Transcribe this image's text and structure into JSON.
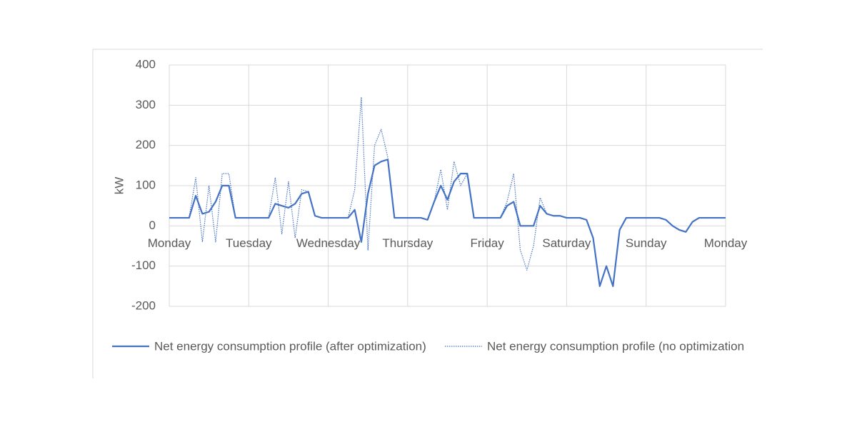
{
  "chart_data": {
    "type": "line",
    "y_label": "kW",
    "x": [
      0,
      2,
      4,
      6,
      8,
      10,
      12,
      14,
      16,
      18,
      20,
      22,
      24,
      26,
      28,
      30,
      32,
      34,
      36,
      38,
      40,
      42,
      44,
      46,
      48,
      50,
      52,
      54,
      56,
      58,
      60,
      62,
      64,
      66,
      68,
      70,
      72,
      74,
      76,
      78,
      80,
      82,
      84,
      86,
      88,
      90,
      92,
      94,
      96,
      98,
      100,
      102,
      104,
      106,
      108,
      110,
      112,
      114,
      116,
      118,
      120,
      122,
      124,
      126,
      128,
      130,
      132,
      134,
      136,
      138,
      140,
      142,
      144,
      146,
      148,
      150,
      152,
      154,
      156,
      158,
      160,
      162,
      164,
      166,
      168
    ],
    "series": [
      {
        "name": "Net energy consumption profile (after optimization)",
        "color": "#4472c4",
        "dash": "solid",
        "values": [
          20,
          20,
          20,
          20,
          75,
          30,
          35,
          60,
          100,
          100,
          20,
          20,
          20,
          20,
          20,
          20,
          55,
          50,
          45,
          55,
          80,
          85,
          25,
          20,
          20,
          20,
          20,
          20,
          40,
          -40,
          80,
          150,
          160,
          165,
          20,
          20,
          20,
          20,
          20,
          15,
          60,
          100,
          65,
          110,
          130,
          130,
          20,
          20,
          20,
          20,
          20,
          50,
          60,
          0,
          0,
          0,
          50,
          30,
          25,
          25,
          20,
          20,
          20,
          15,
          -30,
          -150,
          -100,
          -150,
          -10,
          20,
          20,
          20,
          20,
          20,
          20,
          15,
          0,
          -10,
          -15,
          10,
          20,
          20,
          20,
          20,
          20
        ]
      },
      {
        "name": "Net energy consumption profile (no optimization",
        "color": "#4472c4",
        "dash": "dotted",
        "values": [
          20,
          20,
          20,
          20,
          120,
          -40,
          100,
          -40,
          130,
          130,
          20,
          20,
          20,
          20,
          20,
          20,
          120,
          -20,
          110,
          -30,
          90,
          85,
          25,
          20,
          20,
          20,
          20,
          20,
          90,
          320,
          -60,
          200,
          240,
          170,
          20,
          20,
          20,
          20,
          20,
          15,
          60,
          140,
          40,
          160,
          100,
          130,
          20,
          20,
          20,
          20,
          20,
          60,
          130,
          -60,
          -110,
          -50,
          70,
          30,
          25,
          25,
          20,
          20,
          20,
          15,
          -30,
          -150,
          -100,
          -150,
          -10,
          20,
          20,
          20,
          20,
          20,
          20,
          15,
          0,
          -10,
          -15,
          10,
          20,
          20,
          20,
          20,
          20
        ]
      }
    ],
    "xlim": [
      0,
      168
    ],
    "xticks": [
      {
        "value": 0,
        "label": "Monday"
      },
      {
        "value": 24,
        "label": "Tuesday"
      },
      {
        "value": 48,
        "label": "Wednesday"
      },
      {
        "value": 72,
        "label": "Thursday"
      },
      {
        "value": 96,
        "label": "Friday"
      },
      {
        "value": 120,
        "label": "Saturday"
      },
      {
        "value": 144,
        "label": "Sunday"
      },
      {
        "value": 168,
        "label": "Monday"
      }
    ],
    "ylim": [
      -200,
      400
    ],
    "yticks": [
      -200,
      -100,
      0,
      100,
      200,
      300,
      400
    ],
    "grid": true,
    "legend": "bottom"
  }
}
